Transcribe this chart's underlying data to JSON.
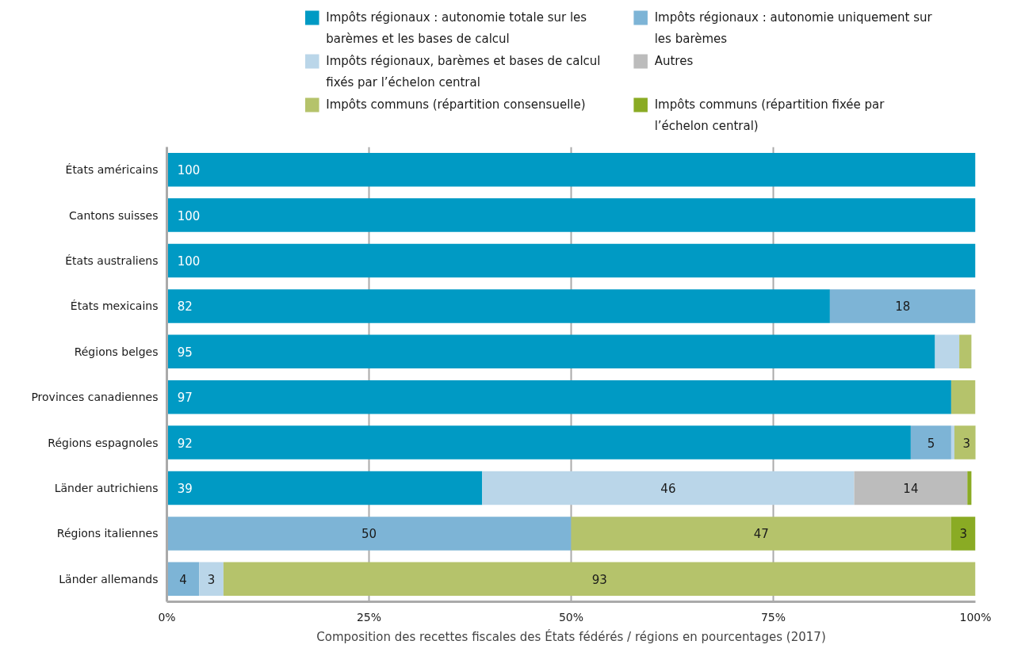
{
  "chart_data": {
    "type": "bar",
    "orientation": "horizontal",
    "stacked": true,
    "categories": [
      "États américains",
      "Cantons suisses",
      "États australiens",
      "États mexicains",
      "Régions belges",
      "Provinces canadiennes",
      "Régions espagnoles",
      "Länder autrichiens",
      "Régions italiennes",
      "Länder allemands"
    ],
    "series": [
      {
        "name": "Impôts régionaux : autonomie totale sur les barèmes et les bases de calcul",
        "color": "#009ac4",
        "values": [
          100,
          100,
          100,
          82,
          95,
          97,
          92,
          39,
          0,
          0
        ],
        "value_labels": [
          "100",
          "100",
          "100",
          "82",
          "95",
          "97",
          "92",
          "39",
          null,
          null
        ]
      },
      {
        "name": "Impôts régionaux : autonomie uniquement sur les barèmes",
        "color": "#7db4d6",
        "values": [
          0,
          0,
          0,
          18,
          0,
          0,
          5,
          0,
          50,
          4
        ],
        "value_labels": [
          null,
          null,
          null,
          "18",
          null,
          null,
          "5",
          null,
          "50",
          "4"
        ]
      },
      {
        "name": "Impôts régionaux, barèmes et bases de calcul fixés par l’échelon central",
        "color": "#bad6e9",
        "values": [
          0,
          0,
          0,
          0,
          3,
          0,
          0.4,
          46,
          0,
          3
        ],
        "value_labels": [
          null,
          null,
          null,
          null,
          null,
          null,
          null,
          "46",
          null,
          "3"
        ]
      },
      {
        "name": "Autres",
        "color": "#bcbcbc",
        "values": [
          0,
          0,
          0,
          0,
          0,
          0,
          0,
          14,
          0,
          0
        ],
        "value_labels": [
          null,
          null,
          null,
          null,
          null,
          null,
          null,
          "14",
          null,
          null
        ]
      },
      {
        "name": "Impôts communs (répartition consensuelle)",
        "color": "#b5c36b",
        "values": [
          0,
          0,
          0,
          0,
          1.5,
          3,
          3,
          0,
          47,
          93
        ],
        "value_labels": [
          null,
          null,
          null,
          null,
          null,
          null,
          "3",
          null,
          "47",
          "93"
        ]
      },
      {
        "name": "Impôts communs (répartition fixée par l’échelon central)",
        "color": "#8aab24",
        "values": [
          0,
          0,
          0,
          0,
          0,
          0,
          0,
          0.5,
          3,
          0
        ],
        "value_labels": [
          null,
          null,
          null,
          null,
          null,
          null,
          null,
          null,
          "3",
          null
        ]
      }
    ],
    "xlim": [
      0,
      100
    ],
    "xticks": [
      {
        "value": 0,
        "label": "0%"
      },
      {
        "value": 25,
        "label": "25%"
      },
      {
        "value": 50,
        "label": "50%"
      },
      {
        "value": 75,
        "label": "75%"
      },
      {
        "value": 100,
        "label": "100%"
      }
    ],
    "xlabel": "Composition des recettes fiscales des États fédérés / régions en pourcentages (2017)",
    "grid": "x",
    "legend": "top"
  }
}
